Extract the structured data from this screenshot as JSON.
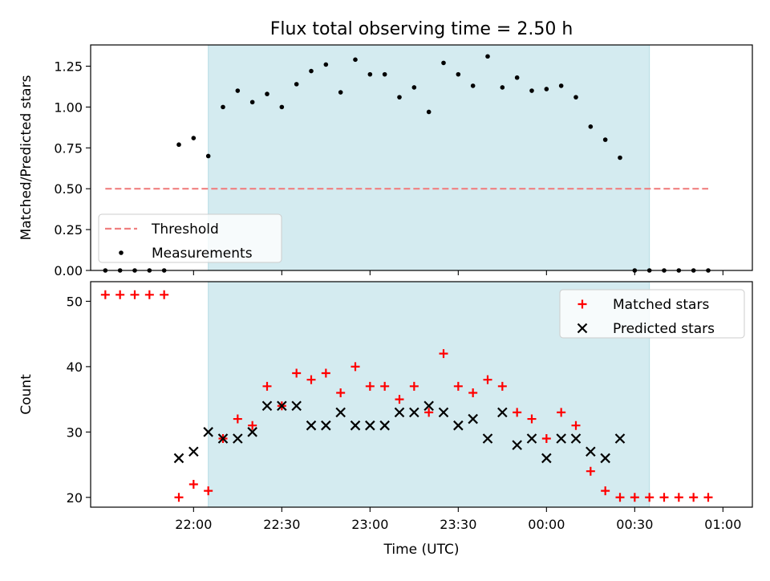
{
  "chart_data": [
    {
      "type": "scatter",
      "title": "Flux total observing time = 2.50 h",
      "ylabel": "Matched/Predicted stars",
      "xlabel": "",
      "x_unit": "minutes after 21:30 UTC",
      "xlim": [
        -5,
        220
      ],
      "ylim": [
        0,
        1.38
      ],
      "yticks": [
        0,
        0.25,
        0.5,
        0.75,
        1.0,
        1.25
      ],
      "ytick_labels": [
        "0.00",
        "0.25",
        "0.50",
        "0.75",
        "1.00",
        "1.25"
      ],
      "shaded_region": {
        "x_start": 35,
        "x_end": 185,
        "color": "#d4ebf0"
      },
      "threshold": {
        "name": "Threshold",
        "y": 0.5,
        "x_start": 0,
        "x_end": 205,
        "color": "#f08080"
      },
      "legend": {
        "position": "lower-left",
        "entries": [
          "Threshold",
          "Measurements"
        ]
      },
      "series": [
        {
          "name": "Measurements",
          "marker": "dot",
          "color": "#000000",
          "x": [
            0,
            5,
            10,
            15,
            20,
            25,
            30,
            35,
            40,
            45,
            50,
            55,
            60,
            65,
            70,
            75,
            80,
            85,
            90,
            95,
            100,
            105,
            110,
            115,
            120,
            125,
            130,
            135,
            140,
            145,
            150,
            155,
            160,
            165,
            170,
            175,
            180,
            185,
            190,
            195,
            200,
            205
          ],
          "values": [
            0,
            0,
            0,
            0,
            0,
            0.77,
            0.81,
            0.7,
            1.0,
            1.1,
            1.03,
            1.08,
            1.0,
            1.14,
            1.22,
            1.26,
            1.09,
            1.29,
            1.2,
            1.2,
            1.06,
            1.12,
            0.97,
            1.27,
            1.2,
            1.13,
            1.31,
            1.12,
            1.18,
            1.1,
            1.11,
            1.13,
            1.06,
            0.88,
            0.8,
            0.69,
            0,
            0,
            0,
            0,
            0,
            0
          ]
        }
      ]
    },
    {
      "type": "scatter",
      "title": "",
      "ylabel": "Count",
      "xlabel": "Time (UTC)",
      "x_unit": "minutes after 21:30 UTC",
      "xlim": [
        -5,
        220
      ],
      "ylim": [
        18.5,
        53
      ],
      "yticks": [
        20,
        30,
        40,
        50
      ],
      "ytick_labels": [
        "20",
        "30",
        "40",
        "50"
      ],
      "xticks": [
        30,
        60,
        90,
        120,
        150,
        180,
        210
      ],
      "xtick_labels": [
        "22:00",
        "22:30",
        "23:00",
        "23:30",
        "00:00",
        "00:30",
        "01:00"
      ],
      "shaded_region": {
        "x_start": 35,
        "x_end": 185,
        "color": "#d4ebf0"
      },
      "legend": {
        "position": "top-right",
        "entries": [
          "Matched stars",
          "Predicted stars"
        ]
      },
      "series": [
        {
          "name": "Matched stars",
          "marker": "plus",
          "color": "#ff0000",
          "x": [
            0,
            5,
            10,
            15,
            20,
            25,
            30,
            35,
            40,
            45,
            50,
            55,
            60,
            65,
            70,
            75,
            80,
            85,
            90,
            95,
            100,
            105,
            110,
            115,
            120,
            125,
            130,
            135,
            140,
            145,
            150,
            155,
            160,
            165,
            170,
            175,
            180,
            185,
            190,
            195,
            200,
            205
          ],
          "values": [
            51,
            51,
            51,
            51,
            51,
            20,
            22,
            21,
            29,
            32,
            31,
            37,
            34,
            39,
            38,
            39,
            36,
            40,
            37,
            37,
            35,
            37,
            33,
            42,
            37,
            36,
            38,
            37,
            33,
            32,
            29,
            33,
            31,
            24,
            21,
            20,
            20,
            20,
            20,
            20,
            20,
            20
          ]
        },
        {
          "name": "Predicted stars",
          "marker": "x",
          "color": "#000000",
          "x": [
            25,
            30,
            35,
            40,
            45,
            50,
            55,
            60,
            65,
            70,
            75,
            80,
            85,
            90,
            95,
            100,
            105,
            110,
            115,
            120,
            125,
            130,
            135,
            140,
            145,
            150,
            155,
            160,
            165,
            170,
            175
          ],
          "values": [
            26,
            27,
            30,
            29,
            29,
            30,
            34,
            34,
            34,
            31,
            31,
            33,
            31,
            31,
            31,
            33,
            33,
            34,
            33,
            31,
            32,
            29,
            33,
            28,
            29,
            26,
            29,
            29,
            27,
            26,
            29
          ]
        }
      ]
    }
  ]
}
